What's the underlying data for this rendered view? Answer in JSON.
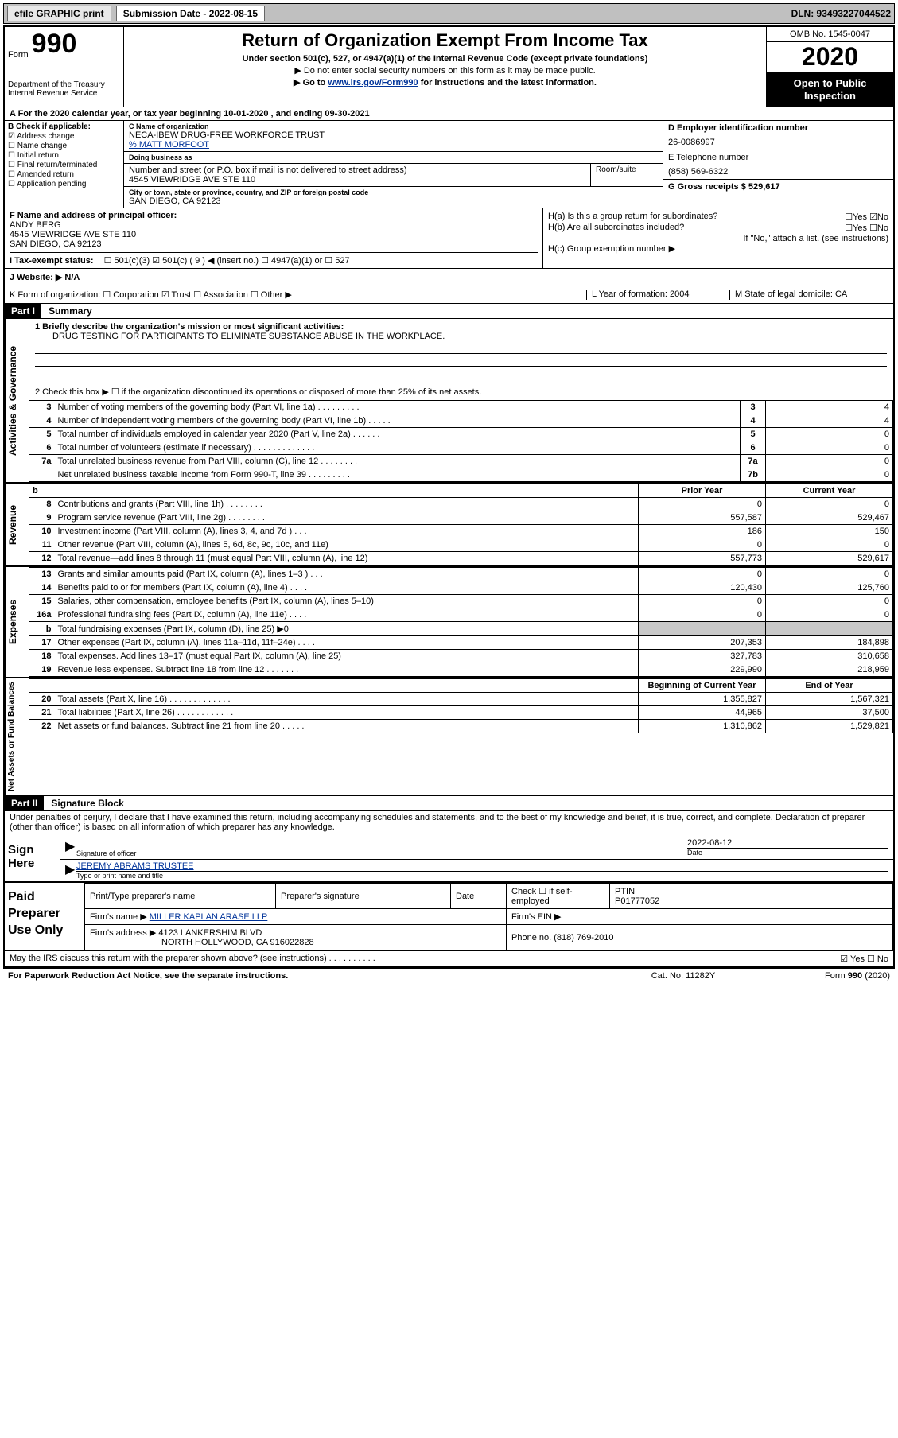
{
  "topbar": {
    "efile": "efile GRAPHIC print",
    "submission_label": "Submission Date - 2022-08-15",
    "dln": "DLN: 93493227044522"
  },
  "header": {
    "form_word": "Form",
    "form_num": "990",
    "dept": "Department of the Treasury",
    "irs": "Internal Revenue Service",
    "title": "Return of Organization Exempt From Income Tax",
    "subtitle": "Under section 501(c), 527, or 4947(a)(1) of the Internal Revenue Code (except private foundations)",
    "line1": "▶ Do not enter social security numbers on this form as it may be made public.",
    "line2_pre": "▶ Go to ",
    "line2_link": "www.irs.gov/Form990",
    "line2_post": " for instructions and the latest information.",
    "omb": "OMB No. 1545-0047",
    "year": "2020",
    "open": "Open to Public Inspection"
  },
  "lineA": "A For the 2020 calendar year, or tax year beginning 10-01-2020   , and ending 09-30-2021",
  "boxB": {
    "label": "B Check if applicable:",
    "items": [
      "Address change",
      "Name change",
      "Initial return",
      "Final return/terminated",
      "Amended return",
      "Application pending"
    ],
    "checked_idx": 0
  },
  "boxC": {
    "name_lbl": "C Name of organization",
    "name": "NECA-IBEW DRUG-FREE WORKFORCE TRUST",
    "care_of": "% MATT MORFOOT",
    "dba_lbl": "Doing business as",
    "street_lbl": "Number and street (or P.O. box if mail is not delivered to street address)",
    "street": "4545 VIEWRIDGE AVE STE 110",
    "room_lbl": "Room/suite",
    "city_lbl": "City or town, state or province, country, and ZIP or foreign postal code",
    "city": "SAN DIEGO, CA  92123"
  },
  "boxD": {
    "lbl": "D Employer identification number",
    "val": "26-0086997"
  },
  "boxE": {
    "lbl": "E Telephone number",
    "val": "(858) 569-6322"
  },
  "boxG": {
    "lbl": "G Gross receipts $ 529,617"
  },
  "boxF": {
    "lbl": "F Name and address of principal officer:",
    "name": "ANDY BERG",
    "addr1": "4545 VIEWRIDGE AVE STE 110",
    "addr2": "SAN DIEGO, CA  92123"
  },
  "boxH": {
    "a": "H(a)  Is this a group return for subordinates?",
    "a_ans": "☐Yes  ☑No",
    "b": "H(b)  Are all subordinates included?",
    "b_ans": "☐Yes  ☐No",
    "b_note": "If \"No,\" attach a list. (see instructions)",
    "c": "H(c)  Group exemption number ▶"
  },
  "lineI": {
    "lbl": "I   Tax-exempt status:",
    "opts": "☐ 501(c)(3)   ☑ 501(c) ( 9 ) ◀ (insert no.)   ☐ 4947(a)(1) or   ☐ 527"
  },
  "lineJ": "J   Website: ▶  N/A",
  "lineK": {
    "k": "K Form of organization:   ☐ Corporation  ☑ Trust  ☐ Association  ☐ Other ▶",
    "l": "L Year of formation: 2004",
    "m": "M State of legal domicile: CA"
  },
  "part1": {
    "hdr": "Part I",
    "title": "Summary",
    "q1": "1   Briefly describe the organization's mission or most significant activities:",
    "q1_ans": "DRUG TESTING FOR PARTICIPANTS TO ELIMINATE SUBSTANCE ABUSE IN THE WORKPLACE.",
    "q2": "2   Check this box ▶ ☐  if the organization discontinued its operations or disposed of more than 25% of its net assets."
  },
  "governance_rows": [
    {
      "n": "3",
      "desc": "Number of voting members of the governing body (Part VI, line 1a)  .    .    .    .    .    .    .    .    .",
      "box": "3",
      "val": "4"
    },
    {
      "n": "4",
      "desc": "Number of independent voting members of the governing body (Part VI, line 1b)   .    .    .    .    .",
      "box": "4",
      "val": "4"
    },
    {
      "n": "5",
      "desc": "Total number of individuals employed in calendar year 2020 (Part V, line 2a)    .    .    .    .    .    .",
      "box": "5",
      "val": "0"
    },
    {
      "n": "6",
      "desc": "Total number of volunteers (estimate if necessary)   .    .    .    .    .    .    .    .    .    .    .    .    .",
      "box": "6",
      "val": "0"
    },
    {
      "n": "7a",
      "desc": "Total unrelated business revenue from Part VIII, column (C), line 12   .    .    .    .    .    .    .    .",
      "box": "7a",
      "val": "0"
    },
    {
      "n": "",
      "desc": "Net unrelated business taxable income from Form 990-T, line 39    .    .    .    .    .    .    .    .    .",
      "box": "7b",
      "val": "0"
    }
  ],
  "twocol_header": {
    "b": "b",
    "prior": "Prior Year",
    "current": "Current Year"
  },
  "revenue_rows": [
    {
      "n": "8",
      "desc": "Contributions and grants (Part VIII, line 1h)    .    .    .    .    .    .    .    .",
      "p": "0",
      "c": "0"
    },
    {
      "n": "9",
      "desc": "Program service revenue (Part VIII, line 2g)    .    .    .    .    .    .    .    .",
      "p": "557,587",
      "c": "529,467"
    },
    {
      "n": "10",
      "desc": "Investment income (Part VIII, column (A), lines 3, 4, and 7d )    .    .    .",
      "p": "186",
      "c": "150"
    },
    {
      "n": "11",
      "desc": "Other revenue (Part VIII, column (A), lines 5, 6d, 8c, 9c, 10c, and 11e)",
      "p": "0",
      "c": "0"
    },
    {
      "n": "12",
      "desc": "Total revenue—add lines 8 through 11 (must equal Part VIII, column (A), line 12)",
      "p": "557,773",
      "c": "529,617"
    }
  ],
  "expenses_rows": [
    {
      "n": "13",
      "desc": "Grants and similar amounts paid (Part IX, column (A), lines 1–3 )    .    .    .",
      "p": "0",
      "c": "0"
    },
    {
      "n": "14",
      "desc": "Benefits paid to or for members (Part IX, column (A), line 4)    .    .    .    .",
      "p": "120,430",
      "c": "125,760"
    },
    {
      "n": "15",
      "desc": "Salaries, other compensation, employee benefits (Part IX, column (A), lines 5–10)",
      "p": "0",
      "c": "0"
    },
    {
      "n": "16a",
      "desc": "Professional fundraising fees (Part IX, column (A), line 11e)    .    .    .    .",
      "p": "0",
      "c": "0"
    },
    {
      "n": "b",
      "desc": "Total fundraising expenses (Part IX, column (D), line 25) ▶0",
      "p": "GREY",
      "c": "GREY"
    },
    {
      "n": "17",
      "desc": "Other expenses (Part IX, column (A), lines 11a–11d, 11f–24e)    .    .    .    .",
      "p": "207,353",
      "c": "184,898"
    },
    {
      "n": "18",
      "desc": "Total expenses. Add lines 13–17 (must equal Part IX, column (A), line 25)",
      "p": "327,783",
      "c": "310,658"
    },
    {
      "n": "19",
      "desc": "Revenue less expenses. Subtract line 18 from line 12   .    .    .    .    .    .    .",
      "p": "229,990",
      "c": "218,959"
    }
  ],
  "netassets_header": {
    "prior": "Beginning of Current Year",
    "current": "End of Year"
  },
  "netassets_rows": [
    {
      "n": "20",
      "desc": "Total assets (Part X, line 16)    .    .    .    .    .    .    .    .    .    .    .    .    .",
      "p": "1,355,827",
      "c": "1,567,321"
    },
    {
      "n": "21",
      "desc": "Total liabilities (Part X, line 26)    .    .    .    .    .    .    .    .    .    .    .    .",
      "p": "44,965",
      "c": "37,500"
    },
    {
      "n": "22",
      "desc": "Net assets or fund balances. Subtract line 21 from line 20   .    .    .    .    .",
      "p": "1,310,862",
      "c": "1,529,821"
    }
  ],
  "part2": {
    "hdr": "Part II",
    "title": "Signature Block",
    "perjury": "Under penalties of perjury, I declare that I have examined this return, including accompanying schedules and statements, and to the best of my knowledge and belief, it is true, correct, and complete. Declaration of preparer (other than officer) is based on all information of which preparer has any knowledge.",
    "sign_here": "Sign Here",
    "sig_officer": "Signature of officer",
    "sig_date": "2022-08-12",
    "date_lbl": "Date",
    "officer_name": "JEREMY ABRAMS TRUSTEE",
    "type_name": "Type or print name and title"
  },
  "paid": {
    "label": "Paid Preparer Use Only",
    "h1": "Print/Type preparer's name",
    "h2": "Preparer's signature",
    "h3": "Date",
    "h4_pre": "Check ☐ if self-employed",
    "h5": "PTIN",
    "ptin": "P01777052",
    "firm_name_lbl": "Firm's name    ▶",
    "firm_name": "MILLER KAPLAN ARASE LLP",
    "firm_ein_lbl": "Firm's EIN ▶",
    "firm_addr_lbl": "Firm's address ▶",
    "firm_addr1": "4123 LANKERSHIM BLVD",
    "firm_addr2": "NORTH HOLLYWOOD, CA  916022828",
    "phone_lbl": "Phone no.",
    "phone": "(818) 769-2010"
  },
  "footer": {
    "discuss": "May the IRS discuss this return with the preparer shown above? (see instructions)    .    .    .    .    .    .    .    .    .    .",
    "discuss_ans": "☑ Yes   ☐ No",
    "paperwork": "For Paperwork Reduction Act Notice, see the separate instructions.",
    "catno": "Cat. No. 11282Y",
    "formno": "Form 990 (2020)"
  },
  "side_labels": {
    "gov": "Activities & Governance",
    "rev": "Revenue",
    "exp": "Expenses",
    "net": "Net Assets or Fund Balances"
  }
}
